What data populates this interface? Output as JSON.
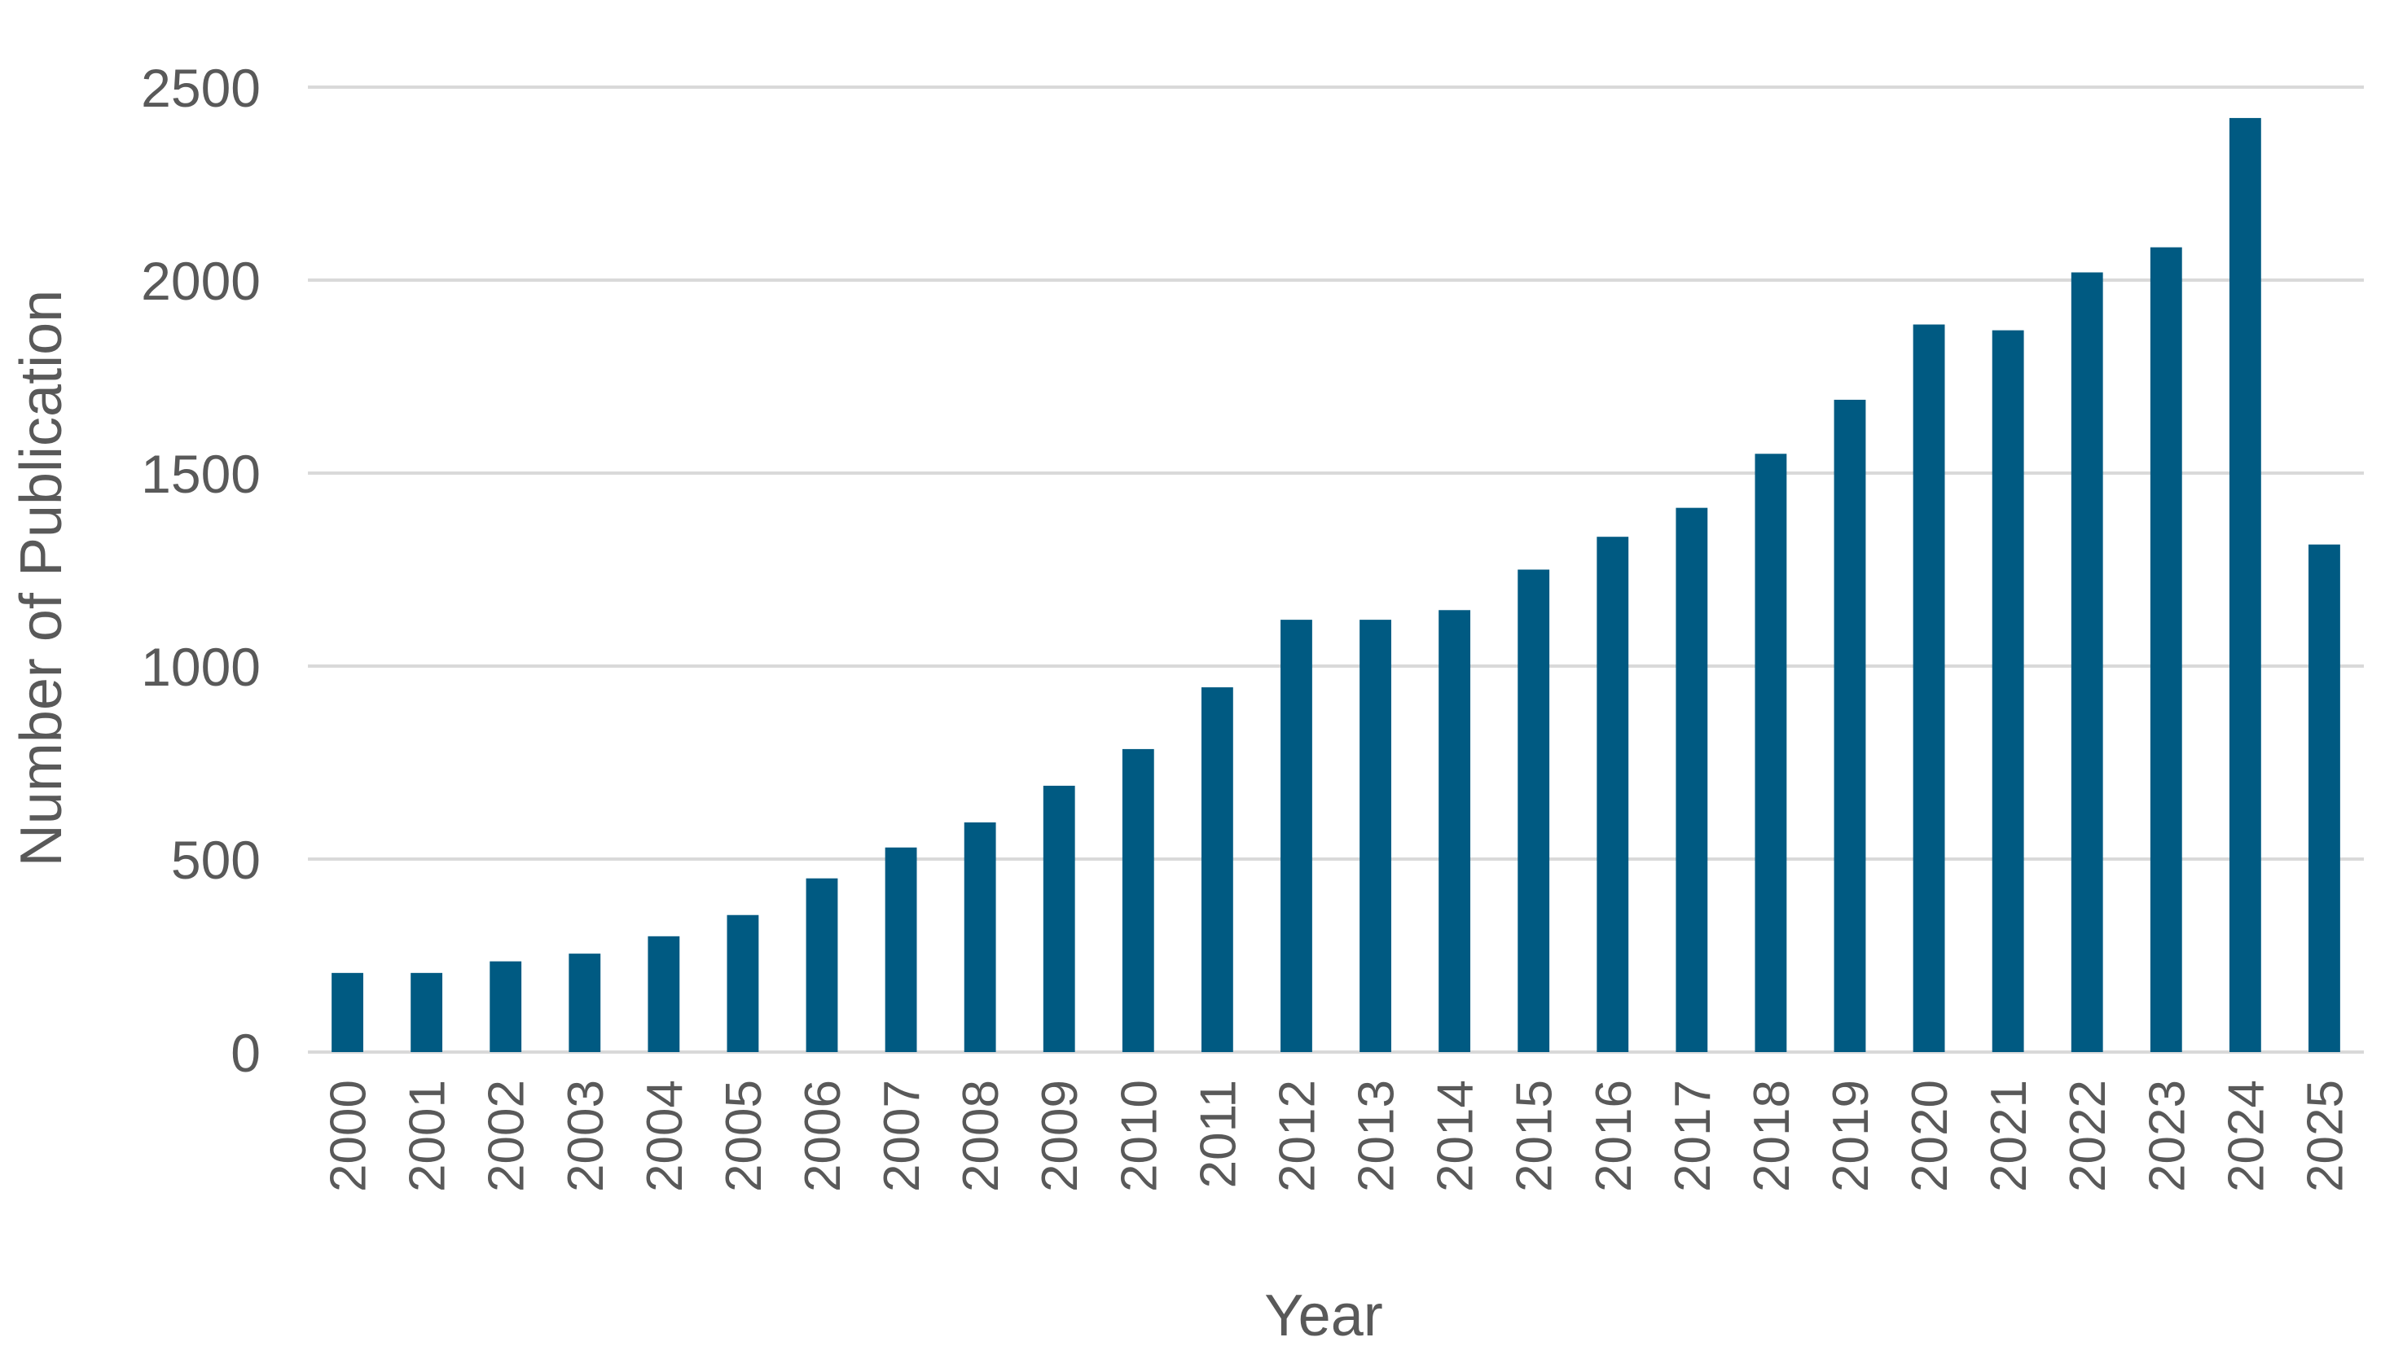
{
  "chart_data": {
    "type": "bar",
    "title": "",
    "xlabel": "Year",
    "ylabel": "Number of Publication",
    "ylim": [
      0,
      2500
    ],
    "yticks": [
      0,
      500,
      1000,
      1500,
      2000,
      2500
    ],
    "grid": true,
    "legend": "none",
    "bar_color": "#005a82",
    "grid_color": "#d9d9d9",
    "categories": [
      "2000",
      "2001",
      "2002",
      "2003",
      "2004",
      "2005",
      "2006",
      "2007",
      "2008",
      "2009",
      "2010",
      "2011",
      "2012",
      "2013",
      "2014",
      "2015",
      "2016",
      "2017",
      "2018",
      "2019",
      "2020",
      "2021",
      "2022",
      "2023",
      "2024",
      "2025"
    ],
    "values": [
      205,
      205,
      235,
      255,
      300,
      355,
      450,
      530,
      595,
      690,
      785,
      945,
      1120,
      1120,
      1145,
      1250,
      1335,
      1410,
      1550,
      1690,
      1885,
      1870,
      2020,
      2085,
      2420,
      1315
    ]
  }
}
